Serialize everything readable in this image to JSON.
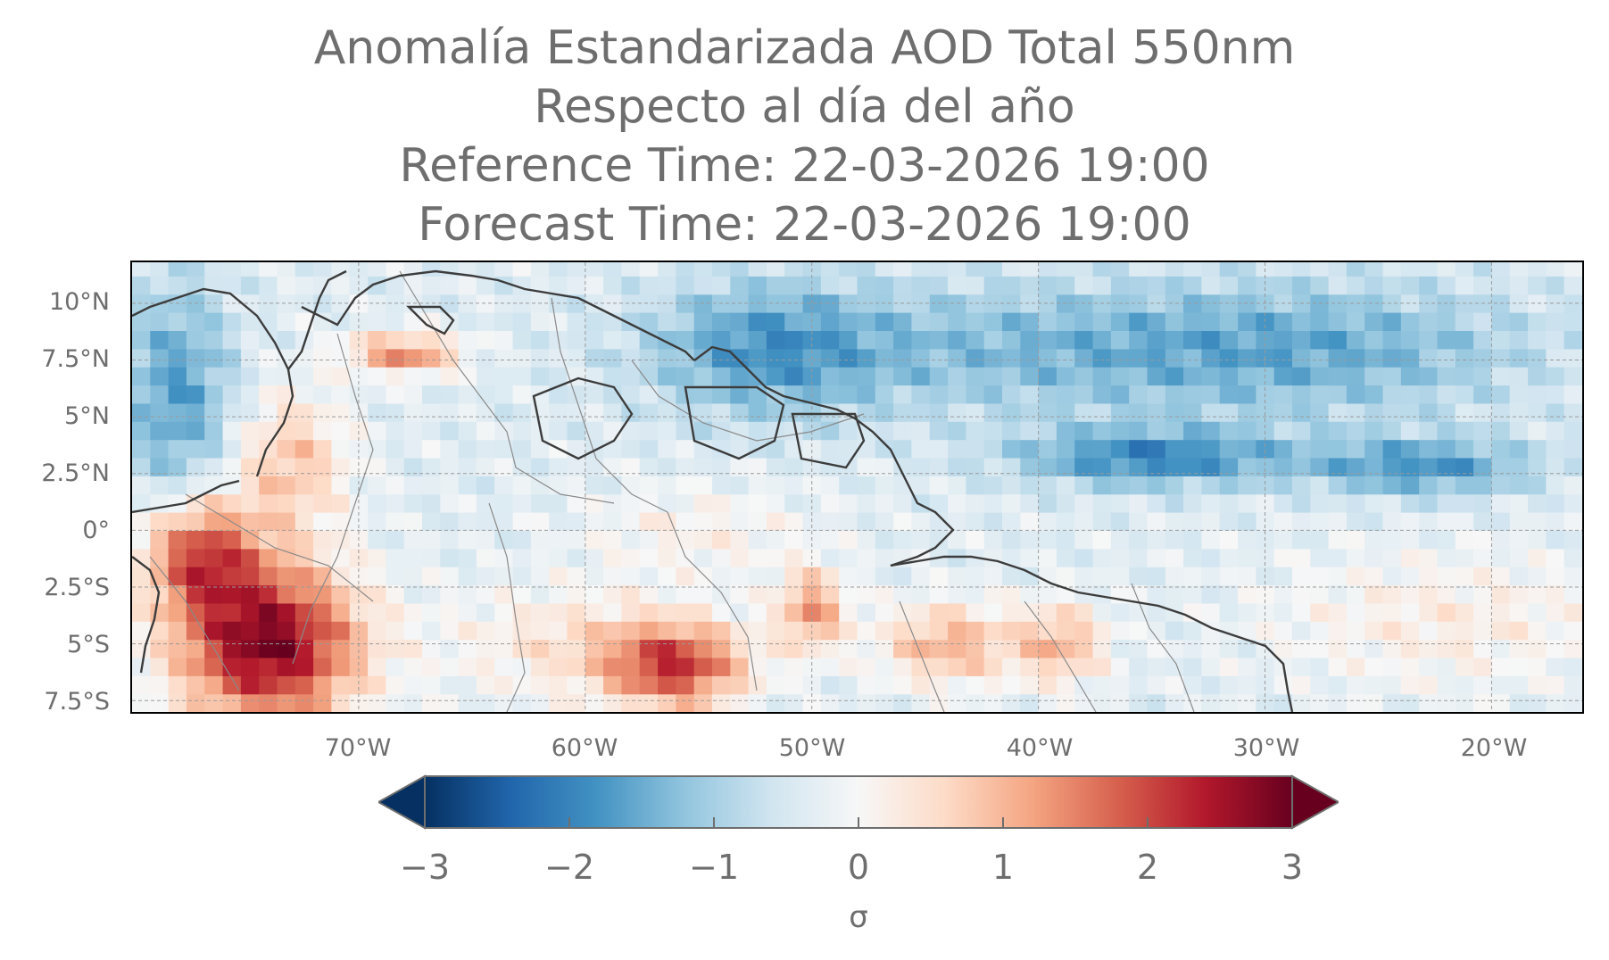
{
  "title": {
    "line1": "Anomalía Estandarizada AOD Total 550nm",
    "line2": "Respecto al día del año",
    "line3": "Reference Time: 22-03-2026 19:00",
    "line4": "Forecast Time: 22-03-2026 19:00"
  },
  "map": {
    "lat_ticks": [
      "10°N",
      "7.5°N",
      "5°N",
      "2.5°N",
      "0°",
      "2.5°S",
      "5°S",
      "7.5°S"
    ],
    "lon_ticks": [
      "70°W",
      "60°W",
      "50°W",
      "40°W",
      "30°W",
      "20°W"
    ],
    "lat_range": [
      -8.0,
      11.8
    ],
    "lon_range": [
      -80.0,
      -16.0
    ],
    "gridlines": true
  },
  "colorbar": {
    "ticks": [
      "−3",
      "−2",
      "−1",
      "0",
      "1",
      "2",
      "3"
    ],
    "label": "σ",
    "range": [
      -3,
      3
    ],
    "colormap": "RdBu_r",
    "colors": [
      "#053061",
      "#2166ac",
      "#4393c3",
      "#92c5de",
      "#d1e5f0",
      "#f7f7f7",
      "#fddbc7",
      "#f4a582",
      "#d6604d",
      "#b2182b",
      "#67001f"
    ]
  }
}
